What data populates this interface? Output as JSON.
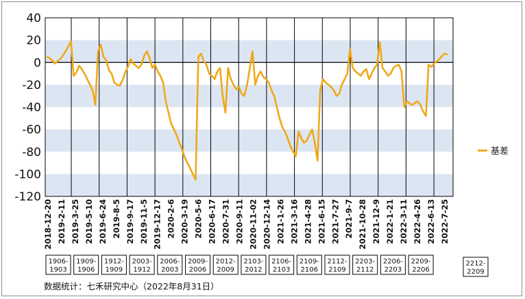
{
  "chart_data": {
    "type": "line",
    "ylim": [
      -120,
      40
    ],
    "y_ticks": [
      40,
      20,
      0,
      -20,
      -40,
      -60,
      -80,
      -100,
      -120
    ],
    "grid": "alternating horizontal bands",
    "legend_position": "right",
    "series": [
      {
        "name": "基差",
        "color": "#f0a818",
        "values": [
          5,
          4,
          2,
          -1,
          1,
          3,
          6,
          10,
          14,
          19,
          -12,
          -9,
          -3,
          -6,
          -10,
          -15,
          -20,
          -25,
          -38,
          10,
          16,
          5,
          2,
          -7,
          -10,
          -18,
          -20,
          -21,
          -16,
          -9,
          -4,
          3,
          -1,
          -3,
          -5,
          -2,
          6,
          10,
          4,
          -5,
          -2,
          -8,
          -12,
          -18,
          -35,
          -45,
          -55,
          -60,
          -65,
          -72,
          -78,
          -85,
          -90,
          -95,
          -100,
          -105,
          5,
          8,
          1,
          -2,
          -10,
          -12,
          -15,
          -8,
          -5,
          -30,
          -45,
          -5,
          -15,
          -20,
          -24,
          -22,
          -28,
          -30,
          -20,
          -5,
          10,
          -20,
          -12,
          -8,
          -13,
          -15,
          -18,
          -25,
          -30,
          -40,
          -50,
          -58,
          -62,
          -68,
          -75,
          -80,
          -84,
          -62,
          -68,
          -72,
          -70,
          -65,
          -60,
          -72,
          -88,
          -25,
          -15,
          -18,
          -20,
          -22,
          -25,
          -30,
          -28,
          -20,
          -15,
          -10,
          12,
          -5,
          -8,
          -10,
          -12,
          -8,
          -6,
          -15,
          -10,
          -5,
          -2,
          18,
          -5,
          -8,
          -12,
          -10,
          -5,
          -3,
          -2,
          -8,
          -40,
          -35,
          -37,
          -38,
          -36,
          -35,
          -38,
          -44,
          -48,
          -2,
          -4,
          -1,
          1,
          3,
          6,
          8,
          7
        ]
      }
    ],
    "x_tick_labels": [
      "2018-12-20",
      "2019-2-11",
      "2019-3-25",
      "2019-5-10",
      "2019-6-24",
      "2019-8-5",
      "2019-9-17",
      "2019-11-5",
      "2019-12-17",
      "2020-2-6",
      "2020-3-19",
      "2020-5-6",
      "2020-6-17",
      "2020-7-31",
      "2020-9-11",
      "2020-11-02",
      "2020-12-14",
      "2021-1-26",
      "2021-3-16",
      "2021-4-28",
      "2021-6-15",
      "2021-7-27",
      "2021-9-7",
      "2021-10-28",
      "2021-12-9",
      "2022-1-21",
      "2022-3-11",
      "2022-4-26",
      "2022-6-13",
      "2022-7-25"
    ],
    "contract_periods": [
      "1906-1903",
      "1909-1906",
      "1912-1909",
      "2003-1912",
      "2006-2003",
      "2009-2006",
      "2012-2009",
      "2103-2012",
      "2106-2103",
      "2109-2106",
      "2112-2109",
      "2203-2112",
      "2206-2203",
      "2209-2206",
      "2212-2209"
    ],
    "source": "数据统计：七禾研究中心（2022年8月31日）"
  }
}
